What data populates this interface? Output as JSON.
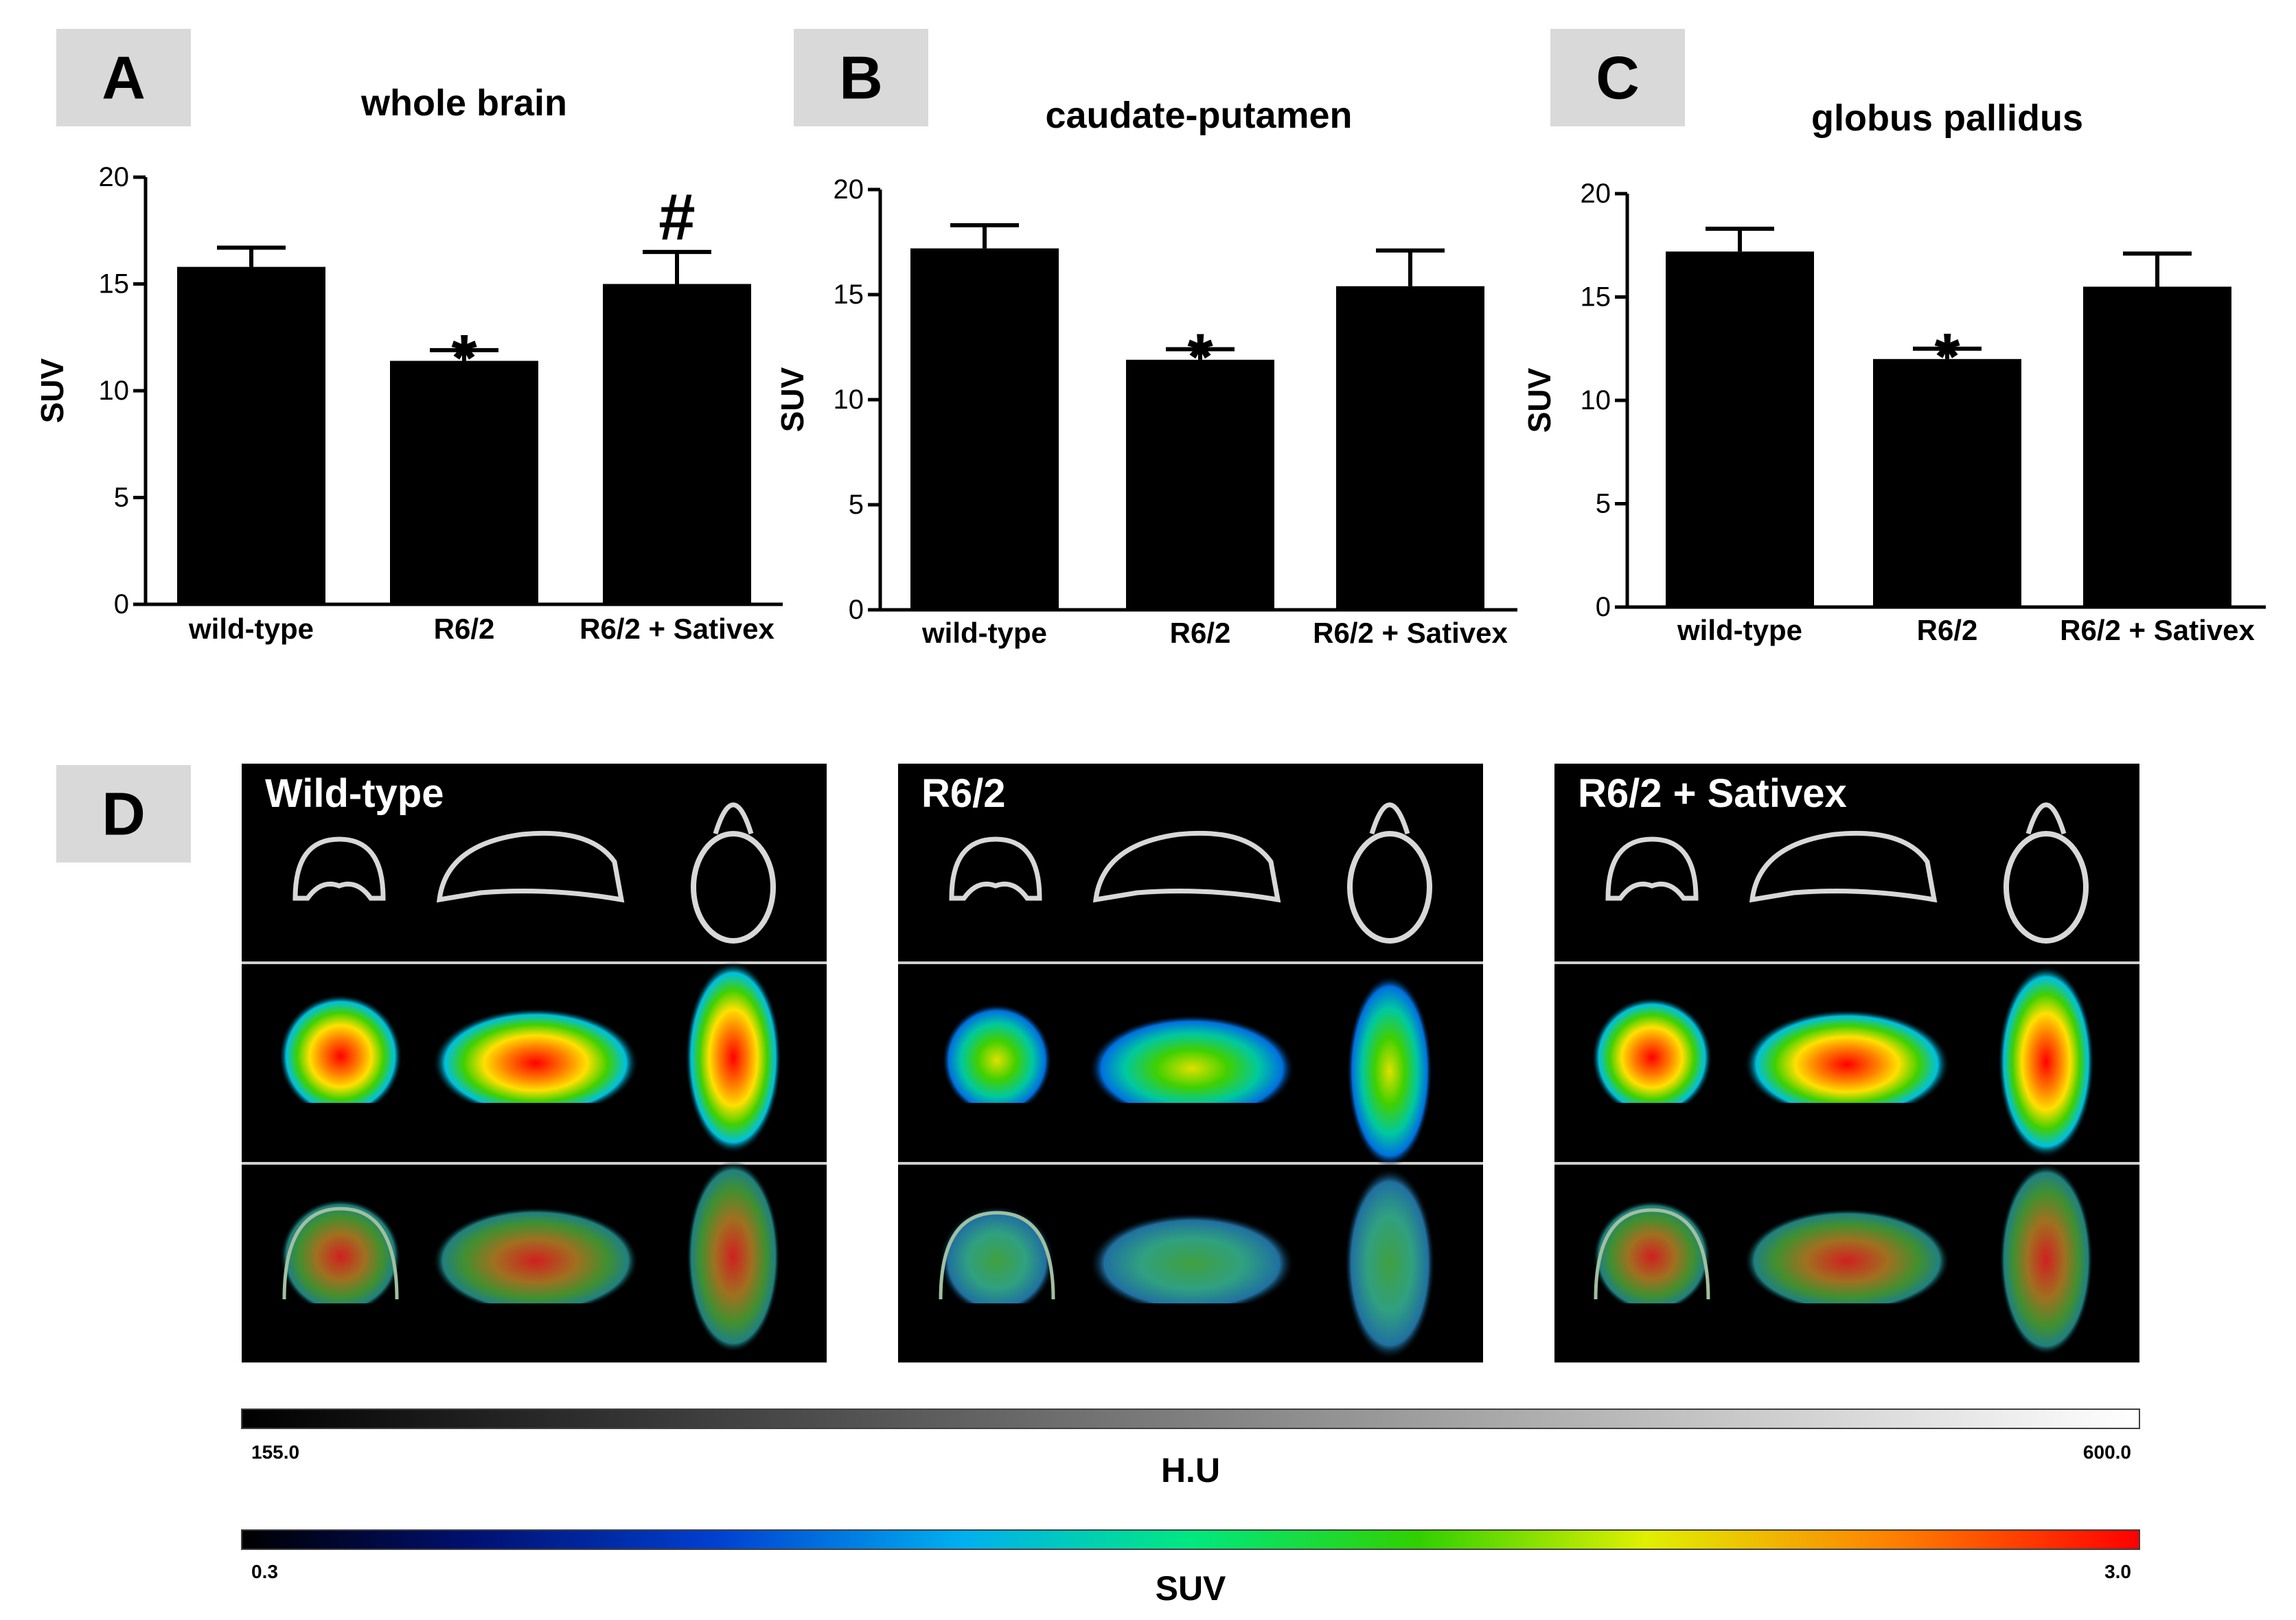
{
  "panel_labels": {
    "a": "A",
    "b": "B",
    "c": "C",
    "d": "D"
  },
  "chart_data": [
    {
      "type": "bar",
      "title": "whole brain",
      "ylabel": "SUV",
      "ylim": [
        0,
        20
      ],
      "yticks": [
        "0",
        "5",
        "10",
        "15",
        "20"
      ],
      "categories": [
        "wild-type",
        "R6/2",
        "R6/2 + Sativex"
      ],
      "values": [
        15.8,
        11.4,
        15.0
      ],
      "errors": [
        0.9,
        0.5,
        1.5
      ],
      "annotations": [
        "",
        "*",
        "#"
      ]
    },
    {
      "type": "bar",
      "title": "caudate-putamen",
      "ylabel": "SUV",
      "ylim": [
        0,
        20
      ],
      "yticks": [
        "0",
        "5",
        "10",
        "15",
        "20"
      ],
      "categories": [
        "wild-type",
        "R6/2",
        "R6/2 + Sativex"
      ],
      "values": [
        17.2,
        11.9,
        15.4
      ],
      "errors": [
        1.1,
        0.5,
        1.7
      ],
      "annotations": [
        "",
        "*",
        ""
      ]
    },
    {
      "type": "bar",
      "title": "globus pallidus",
      "ylabel": "SUV",
      "ylim": [
        0,
        20
      ],
      "yticks": [
        "0",
        "5",
        "10",
        "15",
        "20"
      ],
      "categories": [
        "wild-type",
        "R6/2",
        "R6/2 + Sativex"
      ],
      "values": [
        17.2,
        12.0,
        15.5
      ],
      "errors": [
        1.1,
        0.5,
        1.6
      ],
      "annotations": [
        "",
        "*",
        ""
      ]
    }
  ],
  "imaging": {
    "groups": [
      "Wild-type",
      "R6/2",
      "R6/2 + Sativex"
    ],
    "ct_scale": {
      "min_label": "155.0",
      "max_label": "600.0",
      "unit": "H.U"
    },
    "suv_scale": {
      "min_label": "0.3",
      "max_label": "3.0",
      "unit": "SUV"
    }
  },
  "colors": {
    "bar": "#000000",
    "label_box": "#d9d9d9",
    "image_bg": "#000000"
  }
}
